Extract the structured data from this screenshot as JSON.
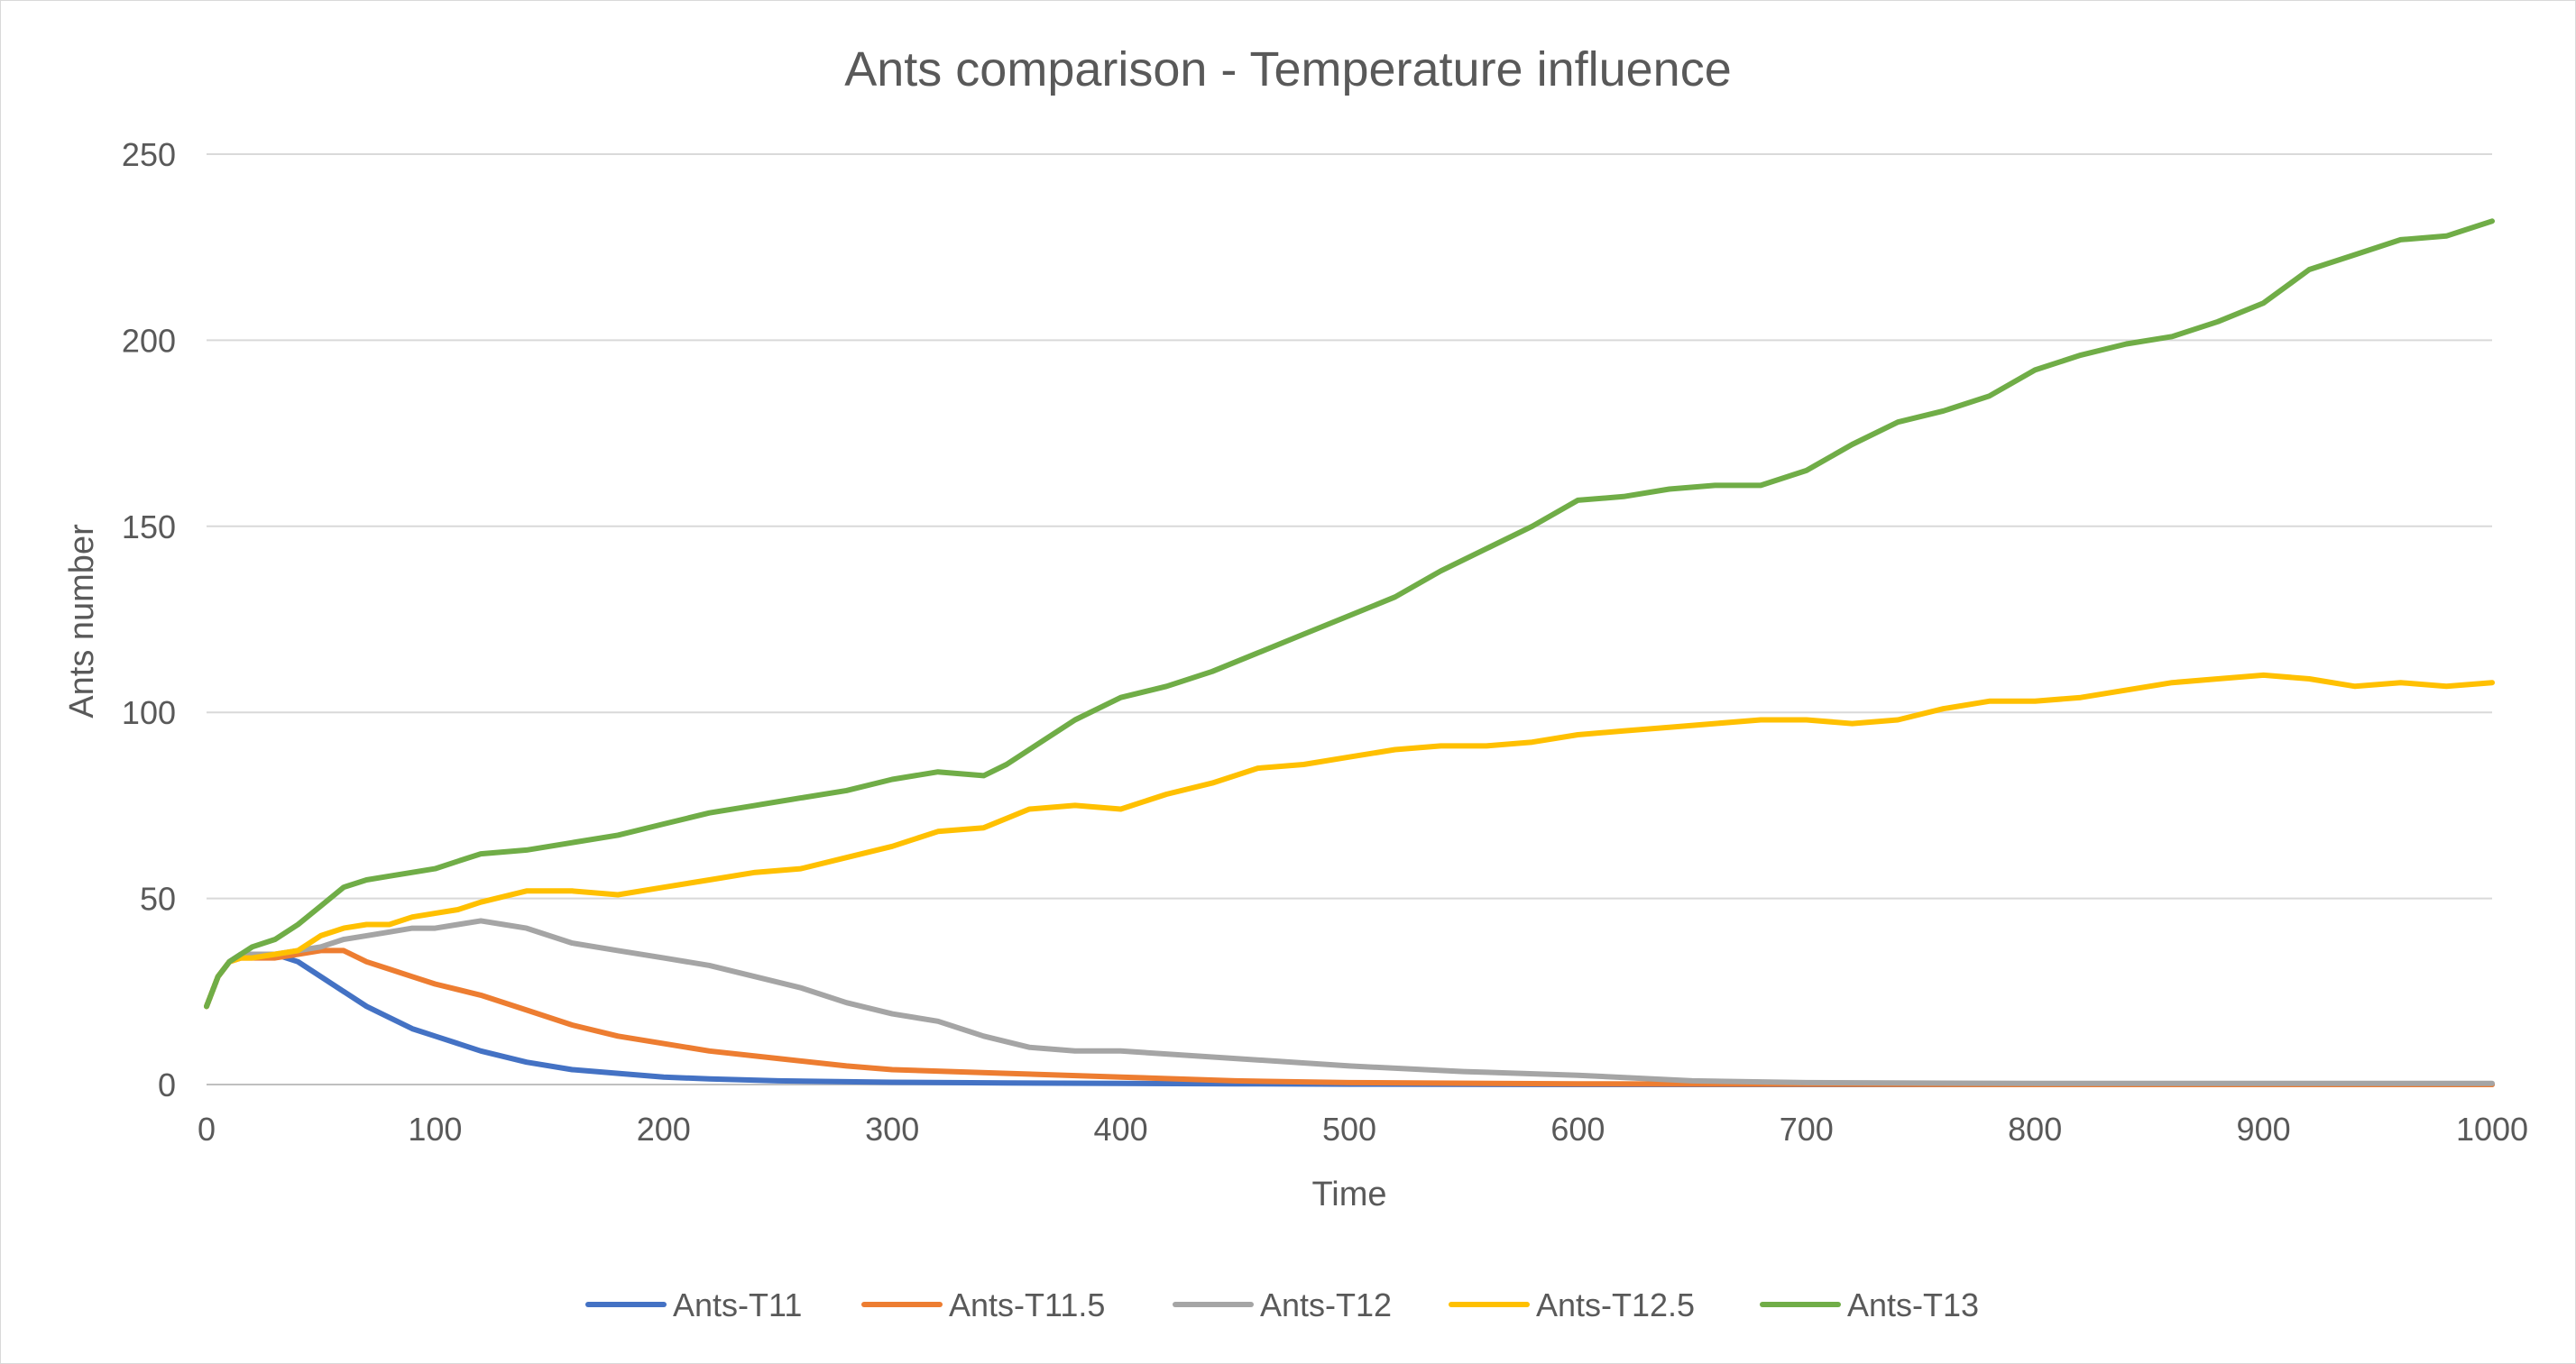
{
  "chart_data": {
    "type": "line",
    "title": "Ants comparison - Temperature influence",
    "xlabel": "Time",
    "ylabel": "Ants number",
    "xlim": [
      0,
      1000
    ],
    "ylim": [
      0,
      250
    ],
    "xticks": [
      0,
      100,
      200,
      300,
      400,
      500,
      600,
      700,
      800,
      900,
      1000
    ],
    "yticks": [
      0,
      50,
      100,
      150,
      200,
      250
    ],
    "grid": "horizontal",
    "legend": "bottom",
    "series": [
      {
        "name": "Ants-T11",
        "color": "#4472C4",
        "x": [
          0,
          5,
          10,
          15,
          20,
          30,
          40,
          50,
          60,
          70,
          80,
          90,
          100,
          120,
          140,
          160,
          180,
          200,
          220,
          250,
          300,
          350,
          400,
          450,
          500,
          600,
          700,
          800,
          900,
          1000
        ],
        "values": [
          21,
          29,
          33,
          35,
          35,
          35,
          33,
          29,
          25,
          21,
          18,
          15,
          13,
          9,
          6,
          4,
          3,
          2,
          1.5,
          1,
          0.6,
          0.4,
          0.3,
          0.2,
          0.1,
          0,
          0,
          0,
          0,
          0
        ]
      },
      {
        "name": "Ants-T11.5",
        "color": "#ED7D31",
        "x": [
          0,
          5,
          10,
          15,
          20,
          30,
          40,
          50,
          60,
          70,
          80,
          90,
          100,
          120,
          140,
          160,
          180,
          200,
          220,
          250,
          280,
          300,
          350,
          400,
          450,
          500,
          600,
          700,
          800,
          900,
          1000
        ],
        "values": [
          21,
          29,
          33,
          34,
          34,
          34,
          35,
          36,
          36,
          33,
          31,
          29,
          27,
          24,
          20,
          16,
          13,
          11,
          9,
          7,
          5,
          4,
          3,
          2,
          1,
          0.5,
          0.2,
          0.1,
          0,
          0,
          0
        ]
      },
      {
        "name": "Ants-T12",
        "color": "#A5A5A5",
        "x": [
          0,
          5,
          10,
          15,
          20,
          30,
          40,
          50,
          60,
          70,
          80,
          90,
          100,
          110,
          120,
          130,
          140,
          160,
          180,
          200,
          220,
          240,
          260,
          280,
          300,
          320,
          340,
          360,
          380,
          400,
          450,
          500,
          550,
          600,
          650,
          700,
          800,
          900,
          1000
        ],
        "values": [
          21,
          29,
          33,
          35,
          35,
          35,
          36,
          37,
          39,
          40,
          41,
          42,
          42,
          43,
          44,
          43,
          42,
          38,
          36,
          34,
          32,
          29,
          26,
          22,
          19,
          17,
          13,
          10,
          9,
          9,
          7,
          5,
          3.5,
          2.5,
          1,
          0.5,
          0.3,
          0.3,
          0.3
        ]
      },
      {
        "name": "Ants-T12.5",
        "color": "#FFC000",
        "x": [
          0,
          5,
          10,
          15,
          20,
          30,
          40,
          50,
          60,
          70,
          80,
          90,
          100,
          110,
          120,
          140,
          160,
          180,
          200,
          220,
          240,
          260,
          280,
          300,
          320,
          340,
          360,
          380,
          400,
          420,
          440,
          460,
          480,
          500,
          520,
          540,
          560,
          580,
          600,
          620,
          640,
          660,
          680,
          700,
          720,
          740,
          760,
          780,
          800,
          820,
          840,
          860,
          880,
          900,
          920,
          940,
          960,
          980,
          1000
        ],
        "values": [
          21,
          29,
          33,
          34,
          34,
          35,
          36,
          40,
          42,
          43,
          43,
          45,
          46,
          47,
          49,
          52,
          52,
          51,
          53,
          55,
          57,
          58,
          61,
          64,
          68,
          69,
          74,
          75,
          74,
          78,
          81,
          85,
          86,
          88,
          90,
          91,
          91,
          92,
          94,
          95,
          96,
          97,
          98,
          98,
          97,
          98,
          101,
          103,
          103,
          104,
          106,
          108,
          109,
          110,
          109,
          107,
          108,
          107,
          108
        ]
      },
      {
        "name": "Ants-T13",
        "color": "#70AD47",
        "x": [
          0,
          5,
          10,
          15,
          20,
          30,
          40,
          50,
          60,
          70,
          80,
          90,
          100,
          110,
          120,
          140,
          160,
          180,
          200,
          220,
          240,
          260,
          280,
          300,
          320,
          340,
          350,
          360,
          380,
          400,
          420,
          440,
          460,
          480,
          500,
          520,
          540,
          560,
          580,
          600,
          620,
          640,
          660,
          680,
          700,
          720,
          740,
          760,
          780,
          800,
          820,
          840,
          860,
          880,
          900,
          920,
          940,
          960,
          980,
          1000
        ],
        "values": [
          21,
          29,
          33,
          35,
          37,
          39,
          43,
          48,
          53,
          55,
          56,
          57,
          58,
          60,
          62,
          63,
          65,
          67,
          70,
          73,
          75,
          77,
          79,
          82,
          84,
          83,
          86,
          90,
          98,
          104,
          107,
          111,
          116,
          121,
          126,
          131,
          138,
          144,
          150,
          157,
          158,
          160,
          161,
          161,
          165,
          172,
          178,
          181,
          185,
          192,
          196,
          199,
          201,
          205,
          210,
          219,
          223,
          227,
          228,
          232
        ]
      }
    ]
  }
}
